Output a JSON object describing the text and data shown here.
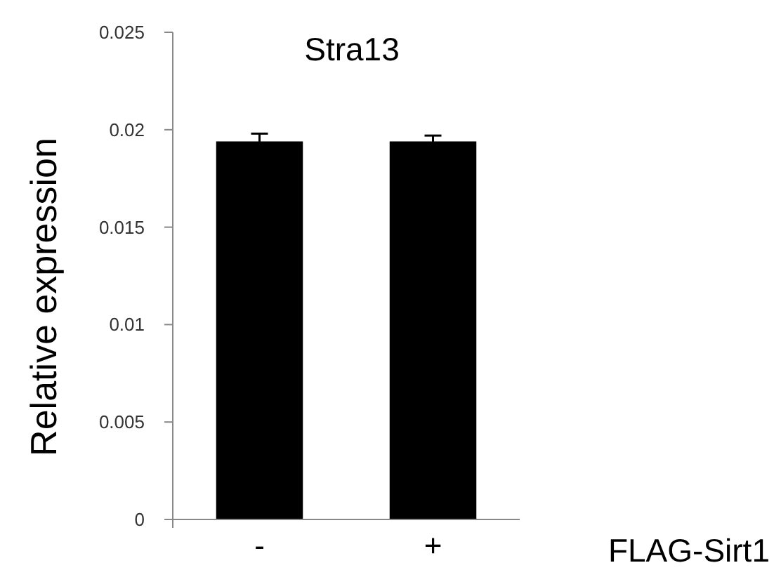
{
  "chart_data": {
    "type": "bar",
    "title": "Stra13",
    "ylabel": "Relative expression",
    "xlabel": "FLAG-Sirt1",
    "categories": [
      "-",
      "+"
    ],
    "values": [
      0.0194,
      0.0194
    ],
    "errors": [
      0.0004,
      0.0003
    ],
    "color": "#000000",
    "ylim": [
      0,
      0.025
    ],
    "yticks": [
      0,
      0.005,
      0.01,
      0.015,
      0.02,
      0.025
    ]
  }
}
